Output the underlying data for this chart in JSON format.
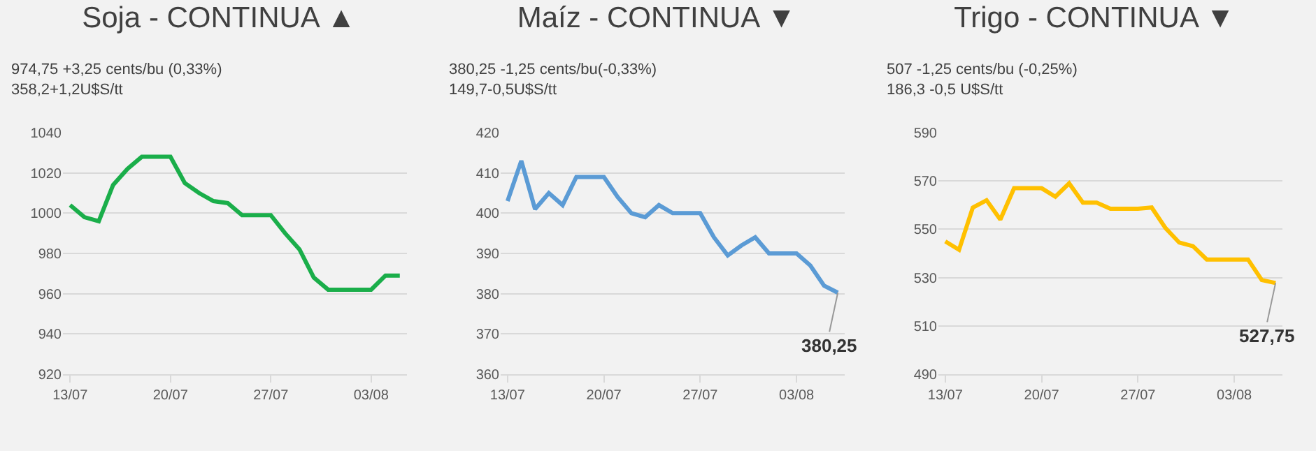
{
  "chart_data": [
    {
      "type": "line",
      "title": "Soja - CONTINUA ▲",
      "subtitle": "974,75 +3,25 cents/bu (0,33%)\n358,2+1,2U$S/tt",
      "categories": [
        "13/07",
        null,
        null,
        null,
        null,
        null,
        null,
        "20/07",
        null,
        null,
        null,
        null,
        null,
        null,
        "27/07",
        null,
        null,
        null,
        null,
        null,
        null,
        "03/08",
        null,
        null
      ],
      "series": [
        {
          "color": "#1aae4a",
          "values": [
            1004,
            998,
            996,
            1014,
            1022,
            1028,
            1028,
            1028,
            1015,
            1010,
            1006,
            1005,
            999,
            999,
            999,
            990,
            982,
            968,
            962,
            962,
            962,
            962,
            969,
            969
          ]
        }
      ],
      "ylim": [
        920,
        1040
      ],
      "yticks": [
        920,
        940,
        960,
        980,
        1000,
        1020,
        1040
      ],
      "grid": "y",
      "marker": "none",
      "line_style": "solid"
    },
    {
      "type": "line",
      "title": "Maíz - CONTINUA ▼",
      "subtitle": "380,25 -1,25 cents/bu(-0,33%)\n149,7-0,5U$S/tt",
      "categories": [
        "13/07",
        null,
        null,
        null,
        null,
        null,
        null,
        "20/07",
        null,
        null,
        null,
        null,
        null,
        null,
        "27/07",
        null,
        null,
        null,
        null,
        null,
        null,
        "03/08",
        null,
        null,
        null
      ],
      "series": [
        {
          "color": "#5b9bd5",
          "values": [
            403,
            413,
            401,
            405,
            402,
            409,
            409,
            409,
            404,
            400,
            399,
            402,
            400,
            400,
            400,
            394,
            389.5,
            392,
            394,
            390,
            390,
            390,
            387,
            382,
            380.25
          ]
        }
      ],
      "annotations": [
        {
          "text": "380,25",
          "y": 380.25
        }
      ],
      "ylim": [
        360,
        420
      ],
      "yticks": [
        360,
        370,
        380,
        390,
        400,
        410,
        420
      ],
      "grid": "y",
      "marker": "none",
      "line_style": "solid"
    },
    {
      "type": "line",
      "title": "Trigo - CONTINUA ▼",
      "subtitle": "507 -1,25 cents/bu (-0,25%)\n186,3 -0,5 U$S/tt",
      "categories": [
        "13/07",
        null,
        null,
        null,
        null,
        null,
        null,
        "20/07",
        null,
        null,
        null,
        null,
        null,
        null,
        "27/07",
        null,
        null,
        null,
        null,
        null,
        null,
        "03/08",
        null,
        null,
        null
      ],
      "series": [
        {
          "color": "#ffc000",
          "values": [
            545,
            541.5,
            559,
            562,
            554,
            567,
            567,
            567,
            563.5,
            569,
            561,
            561,
            558.5,
            558.5,
            558.5,
            559,
            550.5,
            544.5,
            543,
            537.5,
            537.5,
            537.5,
            537.5,
            529,
            527.75
          ]
        }
      ],
      "annotations": [
        {
          "text": "527,75",
          "y": 527.75
        }
      ],
      "ylim": [
        490,
        590
      ],
      "yticks": [
        490,
        510,
        530,
        550,
        570,
        590
      ],
      "grid": "y",
      "marker": "none",
      "line_style": "solid"
    }
  ]
}
